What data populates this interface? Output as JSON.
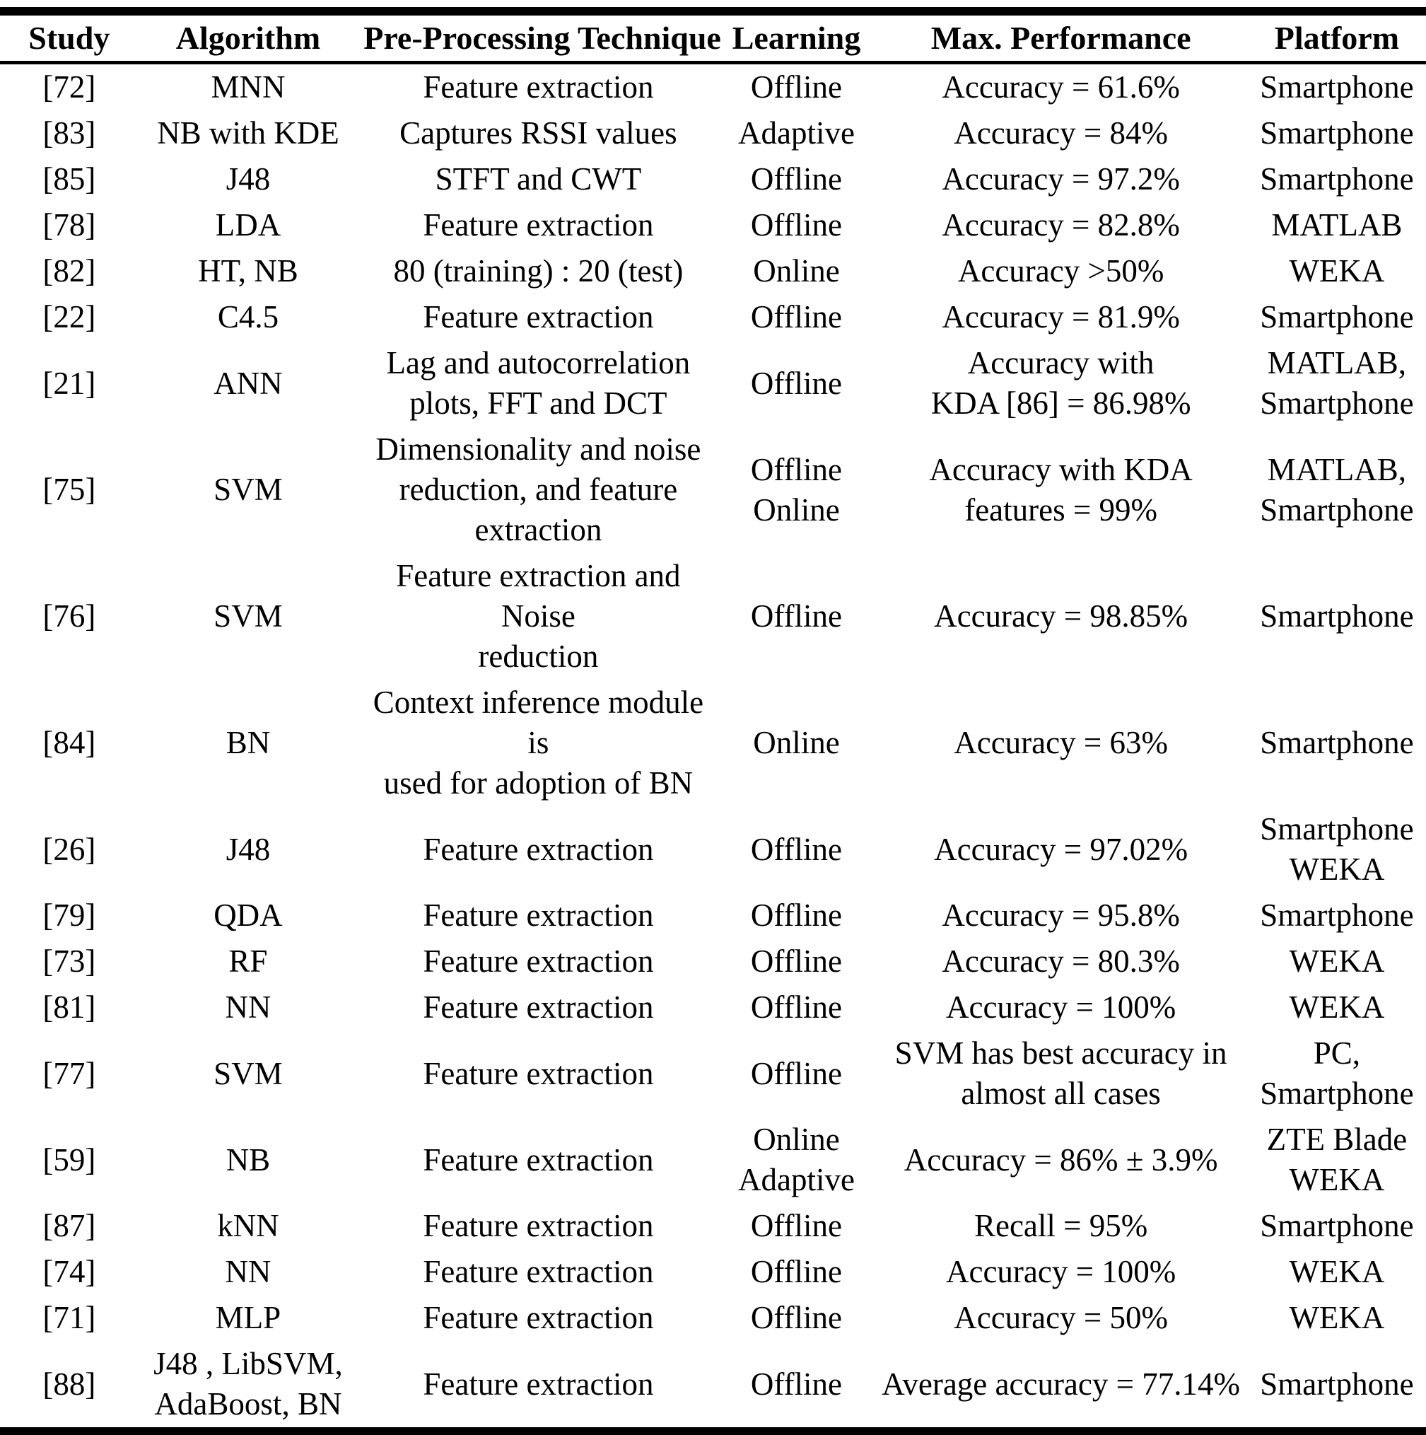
{
  "colors": {
    "text": "#000000",
    "background": "#ffffff",
    "border": "#000000"
  },
  "table": {
    "headers": [
      "Study",
      "Algorithm",
      "Pre-Processing Technique",
      "Learning",
      "Max. Performance",
      "Platform"
    ],
    "rows": [
      [
        [
          "[72]"
        ],
        [
          "MNN"
        ],
        [
          "Feature extraction"
        ],
        [
          "Offline"
        ],
        [
          "Accuracy = 61.6%"
        ],
        [
          "Smartphone"
        ]
      ],
      [
        [
          "[83]"
        ],
        [
          "NB with KDE"
        ],
        [
          "Captures RSSI values"
        ],
        [
          "Adaptive"
        ],
        [
          "Accuracy = 84%"
        ],
        [
          "Smartphone"
        ]
      ],
      [
        [
          "[85]"
        ],
        [
          "J48"
        ],
        [
          "STFT and CWT"
        ],
        [
          "Offline"
        ],
        [
          "Accuracy = 97.2%"
        ],
        [
          "Smartphone"
        ]
      ],
      [
        [
          "[78]"
        ],
        [
          "LDA"
        ],
        [
          "Feature extraction"
        ],
        [
          "Offline"
        ],
        [
          "Accuracy = 82.8%"
        ],
        [
          "MATLAB"
        ]
      ],
      [
        [
          "[82]"
        ],
        [
          "HT, NB"
        ],
        [
          "80 (training) : 20 (test)"
        ],
        [
          "Online"
        ],
        [
          "Accuracy >50%"
        ],
        [
          "WEKA"
        ]
      ],
      [
        [
          "[22]"
        ],
        [
          "C4.5"
        ],
        [
          "Feature extraction"
        ],
        [
          "Offline"
        ],
        [
          "Accuracy = 81.9%"
        ],
        [
          "Smartphone"
        ]
      ],
      [
        [
          "[21]"
        ],
        [
          "ANN"
        ],
        [
          "Lag and autocorrelation",
          "plots, FFT and DCT"
        ],
        [
          "Offline"
        ],
        [
          "Accuracy with",
          "KDA [86] = 86.98%"
        ],
        [
          "MATLAB,",
          "Smartphone"
        ]
      ],
      [
        [
          "[75]"
        ],
        [
          "SVM"
        ],
        [
          "Dimensionality and noise",
          "reduction, and feature",
          "extraction"
        ],
        [
          "Offline",
          "Online"
        ],
        [
          "Accuracy with KDA",
          "features = 99%"
        ],
        [
          "MATLAB,",
          "Smartphone"
        ]
      ],
      [
        [
          "[76]"
        ],
        [
          "SVM"
        ],
        [
          "Feature extraction and Noise",
          "reduction"
        ],
        [
          "Offline"
        ],
        [
          "Accuracy = 98.85%"
        ],
        [
          "Smartphone"
        ]
      ],
      [
        [
          "[84]"
        ],
        [
          "BN"
        ],
        [
          "Context inference module is",
          "used for adoption of BN"
        ],
        [
          "Online"
        ],
        [
          "Accuracy = 63%"
        ],
        [
          "Smartphone"
        ]
      ],
      [
        [
          "[26]"
        ],
        [
          "J48"
        ],
        [
          "Feature extraction"
        ],
        [
          "Offline"
        ],
        [
          "Accuracy = 97.02%"
        ],
        [
          "Smartphone",
          "WEKA"
        ]
      ],
      [
        [
          "[79]"
        ],
        [
          "QDA"
        ],
        [
          "Feature extraction"
        ],
        [
          "Offline"
        ],
        [
          "Accuracy = 95.8%"
        ],
        [
          "Smartphone"
        ]
      ],
      [
        [
          "[73]"
        ],
        [
          "RF"
        ],
        [
          "Feature extraction"
        ],
        [
          "Offline"
        ],
        [
          "Accuracy = 80.3%"
        ],
        [
          "WEKA"
        ]
      ],
      [
        [
          "[81]"
        ],
        [
          "NN"
        ],
        [
          "Feature extraction"
        ],
        [
          "Offline"
        ],
        [
          "Accuracy = 100%"
        ],
        [
          "WEKA"
        ]
      ],
      [
        [
          "[77]"
        ],
        [
          "SVM"
        ],
        [
          "Feature extraction"
        ],
        [
          "Offline"
        ],
        [
          "SVM has best accuracy in",
          "almost all cases"
        ],
        [
          "PC,",
          "Smartphone"
        ]
      ],
      [
        [
          "[59]"
        ],
        [
          "NB"
        ],
        [
          "Feature extraction"
        ],
        [
          "Online",
          "Adaptive"
        ],
        [
          "Accuracy = 86% ± 3.9%"
        ],
        [
          "ZTE Blade",
          "WEKA"
        ]
      ],
      [
        [
          "[87]"
        ],
        [
          "kNN"
        ],
        [
          "Feature extraction"
        ],
        [
          "Offline"
        ],
        [
          "Recall = 95%"
        ],
        [
          "Smartphone"
        ]
      ],
      [
        [
          "[74]"
        ],
        [
          "NN"
        ],
        [
          "Feature extraction"
        ],
        [
          "Offline"
        ],
        [
          "Accuracy = 100%"
        ],
        [
          "WEKA"
        ]
      ],
      [
        [
          "[71]"
        ],
        [
          "MLP"
        ],
        [
          "Feature extraction"
        ],
        [
          "Offline"
        ],
        [
          "Accuracy = 50%"
        ],
        [
          "WEKA"
        ]
      ],
      [
        [
          "[88]"
        ],
        [
          "J48 , LibSVM,",
          "AdaBoost, BN"
        ],
        [
          "Feature extraction"
        ],
        [
          "Offline"
        ],
        [
          "Average accuracy = 77.14%"
        ],
        [
          "Smartphone"
        ]
      ]
    ]
  }
}
